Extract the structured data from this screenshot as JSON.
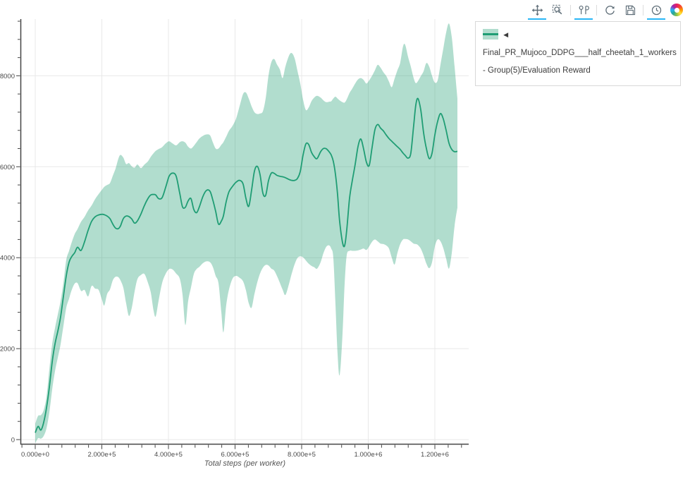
{
  "modebar": {
    "icons": [
      {
        "name": "pan-icon",
        "active": true
      },
      {
        "name": "box-zoom-icon",
        "active": false
      },
      {
        "name": "hover-compare-icon",
        "active": true
      },
      {
        "name": "reset-axes-icon",
        "active": false
      },
      {
        "name": "download-icon",
        "active": false
      },
      {
        "name": "history-icon",
        "active": true
      },
      {
        "name": "logo-icon",
        "active": false
      }
    ],
    "active_color": "#29b6f6",
    "icon_color": "#5f6e78"
  },
  "legend": {
    "label": "◄ Final_PR_Mujoco_DDPG___half_cheetah_1_workers - Group(5)/Evaluation Reward"
  },
  "colors": {
    "line": "#1f9d74",
    "band_opacity": 0.35,
    "grid": "#e8e8e8",
    "axis": "#444444",
    "tick_label": "#4a4a4a",
    "axis_title": "#555555",
    "legend_border": "#d8d8d8"
  },
  "chart_data": {
    "type": "line",
    "title": "",
    "xlabel": "Total steps (per worker)",
    "ylabel": "",
    "grid": true,
    "legend_position": "top-right-outside",
    "x_axis": {
      "range": [
        -42000,
        1302000
      ],
      "minor_tick_step": 40000,
      "ticks": [
        {
          "v": 0,
          "label": "0.000e+0"
        },
        {
          "v": 200000,
          "label": "2.000e+5"
        },
        {
          "v": 400000,
          "label": "4.000e+5"
        },
        {
          "v": 600000,
          "label": "6.000e+5"
        },
        {
          "v": 800000,
          "label": "8.000e+5"
        },
        {
          "v": 1000000,
          "label": "1.000e+6"
        },
        {
          "v": 1200000,
          "label": "1.200e+6"
        }
      ]
    },
    "y_axis": {
      "range": [
        -100,
        9250
      ],
      "minor_tick_step": 400,
      "ticks": [
        {
          "v": 0,
          "label": "0"
        },
        {
          "v": 2000,
          "label": "2000"
        },
        {
          "v": 4000,
          "label": "4000"
        },
        {
          "v": 6000,
          "label": "6000"
        },
        {
          "v": 8000,
          "label": "8000"
        }
      ]
    },
    "series": [
      {
        "name": "Final_PR_Mujoco_DDPG___half_cheetah_1_workers - Group(5)/Evaluation Reward",
        "color": "#1f9d74",
        "band_opacity": 0.35,
        "points_format": [
          "step",
          "band_low",
          "mean",
          "band_high"
        ],
        "points": [
          [
            0,
            -80,
            150,
            350
          ],
          [
            8500,
            30,
            290,
            520
          ],
          [
            17000,
            20,
            210,
            540
          ],
          [
            25400,
            80,
            380,
            650
          ],
          [
            33900,
            250,
            700,
            950
          ],
          [
            42300,
            600,
            1150,
            1550
          ],
          [
            50800,
            1100,
            1700,
            2100
          ],
          [
            59200,
            1500,
            2100,
            2450
          ],
          [
            67700,
            1800,
            2380,
            2750
          ],
          [
            76200,
            2100,
            2700,
            3050
          ],
          [
            84600,
            2500,
            3150,
            3450
          ],
          [
            93100,
            2900,
            3600,
            3950
          ],
          [
            101600,
            3100,
            3900,
            4150
          ],
          [
            110000,
            3300,
            4030,
            4350
          ],
          [
            118500,
            3430,
            4110,
            4520
          ],
          [
            127000,
            3440,
            4230,
            4630
          ],
          [
            137500,
            3270,
            4160,
            4790
          ],
          [
            148100,
            3290,
            4350,
            4900
          ],
          [
            158700,
            3150,
            4600,
            5040
          ],
          [
            169300,
            3380,
            4800,
            5150
          ],
          [
            179900,
            3320,
            4900,
            5290
          ],
          [
            190400,
            3290,
            4940,
            5400
          ],
          [
            201000,
            3060,
            4955,
            5500
          ],
          [
            207400,
            2950,
            4945,
            5560
          ],
          [
            215800,
            3200,
            4915,
            5600
          ],
          [
            224300,
            3300,
            4860,
            5640
          ],
          [
            232800,
            3500,
            4740,
            5800
          ],
          [
            241200,
            3580,
            4650,
            5960
          ],
          [
            249700,
            3570,
            4640,
            6180
          ],
          [
            256000,
            3500,
            4700,
            6260
          ],
          [
            264500,
            3340,
            4860,
            6200
          ],
          [
            272900,
            3000,
            4915,
            6060
          ],
          [
            281400,
            2720,
            4905,
            6080
          ],
          [
            289900,
            2900,
            4850,
            6010
          ],
          [
            298300,
            3250,
            4760,
            5980
          ],
          [
            306800,
            3530,
            4810,
            6050
          ],
          [
            317400,
            3620,
            4960,
            5970
          ],
          [
            328000,
            3640,
            5150,
            6050
          ],
          [
            338500,
            3450,
            5300,
            6120
          ],
          [
            347000,
            3230,
            5380,
            6220
          ],
          [
            355500,
            2830,
            5390,
            6300
          ],
          [
            361800,
            2710,
            5380,
            6350
          ],
          [
            370300,
            3050,
            5300,
            6390
          ],
          [
            380900,
            3440,
            5320,
            6430
          ],
          [
            391400,
            3640,
            5540,
            6510
          ],
          [
            402000,
            3750,
            5790,
            6560
          ],
          [
            412600,
            3740,
            5860,
            6510
          ],
          [
            423200,
            3650,
            5790,
            6470
          ],
          [
            433800,
            3540,
            5420,
            6540
          ],
          [
            442200,
            3200,
            5120,
            6560
          ],
          [
            450700,
            2520,
            5110,
            6530
          ],
          [
            459200,
            3050,
            5250,
            6440
          ],
          [
            467600,
            3340,
            5300,
            6400
          ],
          [
            476100,
            3640,
            5060,
            6460
          ],
          [
            484600,
            3750,
            4990,
            6540
          ],
          [
            493000,
            3800,
            5120,
            6620
          ],
          [
            503600,
            3880,
            5350,
            6680
          ],
          [
            514200,
            3920,
            5480,
            6710
          ],
          [
            524800,
            3900,
            5460,
            6690
          ],
          [
            533200,
            3800,
            5270,
            6540
          ],
          [
            541700,
            3600,
            5020,
            6400
          ],
          [
            550200,
            3440,
            4740,
            6400
          ],
          [
            558600,
            2820,
            4800,
            6480
          ],
          [
            565000,
            2360,
            4920,
            6540
          ],
          [
            573400,
            2950,
            5230,
            6660
          ],
          [
            581900,
            3300,
            5450,
            6790
          ],
          [
            592500,
            3540,
            5570,
            6900
          ],
          [
            603100,
            3600,
            5660,
            7060
          ],
          [
            613600,
            3560,
            5700,
            7330
          ],
          [
            624200,
            3480,
            5620,
            7600
          ],
          [
            632700,
            3280,
            5300,
            7630
          ],
          [
            641100,
            3000,
            5130,
            7500
          ],
          [
            649600,
            2900,
            5480,
            7330
          ],
          [
            658100,
            3200,
            5900,
            7200
          ],
          [
            666500,
            3450,
            6010,
            7160
          ],
          [
            675000,
            3650,
            5830,
            7170
          ],
          [
            683500,
            3780,
            5420,
            7220
          ],
          [
            691900,
            3840,
            5370,
            7500
          ],
          [
            700400,
            3830,
            5690,
            8000
          ],
          [
            708900,
            3760,
            5860,
            8300
          ],
          [
            717300,
            3720,
            5855,
            8370
          ],
          [
            725800,
            3600,
            5810,
            8250
          ],
          [
            734300,
            3450,
            5790,
            8140
          ],
          [
            742700,
            3300,
            5780,
            7950
          ],
          [
            751200,
            3180,
            5760,
            8200
          ],
          [
            761800,
            3420,
            5720,
            8440
          ],
          [
            770200,
            3650,
            5700,
            8500
          ],
          [
            778700,
            3850,
            5700,
            8390
          ],
          [
            787100,
            3990,
            5740,
            8120
          ],
          [
            795600,
            4030,
            5890,
            7840
          ],
          [
            804100,
            4010,
            6250,
            7480
          ],
          [
            812500,
            3940,
            6500,
            7250
          ],
          [
            821000,
            3870,
            6490,
            7300
          ],
          [
            829400,
            3820,
            6320,
            7440
          ],
          [
            837900,
            3790,
            6220,
            7520
          ],
          [
            846400,
            3760,
            6180,
            7560
          ],
          [
            857000,
            3900,
            6330,
            7520
          ],
          [
            865400,
            4100,
            6400,
            7460
          ],
          [
            873900,
            4240,
            6395,
            7420
          ],
          [
            882400,
            4270,
            6330,
            7430
          ],
          [
            888700,
            4200,
            6260,
            7440
          ],
          [
            895100,
            4000,
            6120,
            7500
          ],
          [
            901400,
            3000,
            5840,
            7540
          ],
          [
            907800,
            1900,
            5400,
            7500
          ],
          [
            914100,
            1420,
            4800,
            7460
          ],
          [
            922600,
            2300,
            4340,
            7420
          ],
          [
            928900,
            3400,
            4260,
            7410
          ],
          [
            935300,
            4050,
            4600,
            7480
          ],
          [
            943700,
            4150,
            5300,
            7620
          ],
          [
            952200,
            4150,
            5700,
            7720
          ],
          [
            960700,
            4150,
            6050,
            7830
          ],
          [
            969100,
            4160,
            6440,
            7920
          ],
          [
            977600,
            4180,
            6610,
            7950
          ],
          [
            986000,
            4200,
            6390,
            7910
          ],
          [
            994500,
            4170,
            6100,
            7830
          ],
          [
            1002900,
            4250,
            6030,
            7900
          ],
          [
            1011400,
            4350,
            6420,
            8000
          ],
          [
            1019900,
            4400,
            6810,
            8120
          ],
          [
            1028300,
            4360,
            6930,
            8240
          ],
          [
            1036800,
            4310,
            6850,
            8180
          ],
          [
            1045200,
            4300,
            6790,
            8080
          ],
          [
            1053700,
            4270,
            6700,
            8000
          ],
          [
            1062200,
            4200,
            6620,
            7870
          ],
          [
            1070600,
            4000,
            6560,
            7750
          ],
          [
            1079100,
            3850,
            6500,
            7940
          ],
          [
            1087500,
            4100,
            6440,
            8120
          ],
          [
            1096000,
            4300,
            6380,
            8290
          ],
          [
            1104500,
            4400,
            6300,
            8650
          ],
          [
            1110900,
            4410,
            6250,
            8680
          ],
          [
            1119400,
            4400,
            6190,
            8420
          ],
          [
            1127800,
            4360,
            6300,
            8200
          ],
          [
            1136300,
            4310,
            6900,
            7950
          ],
          [
            1142700,
            4300,
            7350,
            7840
          ],
          [
            1149100,
            4280,
            7500,
            7880
          ],
          [
            1157600,
            4200,
            7250,
            7990
          ],
          [
            1166100,
            4050,
            6750,
            8100
          ],
          [
            1174500,
            3870,
            6400,
            8280
          ],
          [
            1183000,
            3770,
            6180,
            8200
          ],
          [
            1191500,
            3900,
            6300,
            8000
          ],
          [
            1199900,
            4250,
            6700,
            7850
          ],
          [
            1208400,
            4400,
            7000,
            7900
          ],
          [
            1216900,
            4360,
            7170,
            8250
          ],
          [
            1225300,
            4210,
            7050,
            8600
          ],
          [
            1233800,
            3980,
            6800,
            8950
          ],
          [
            1242300,
            3760,
            6520,
            9150
          ],
          [
            1250700,
            4100,
            6380,
            8850
          ],
          [
            1259200,
            4700,
            6330,
            8200
          ],
          [
            1267700,
            5100,
            6340,
            7500
          ]
        ]
      }
    ]
  }
}
